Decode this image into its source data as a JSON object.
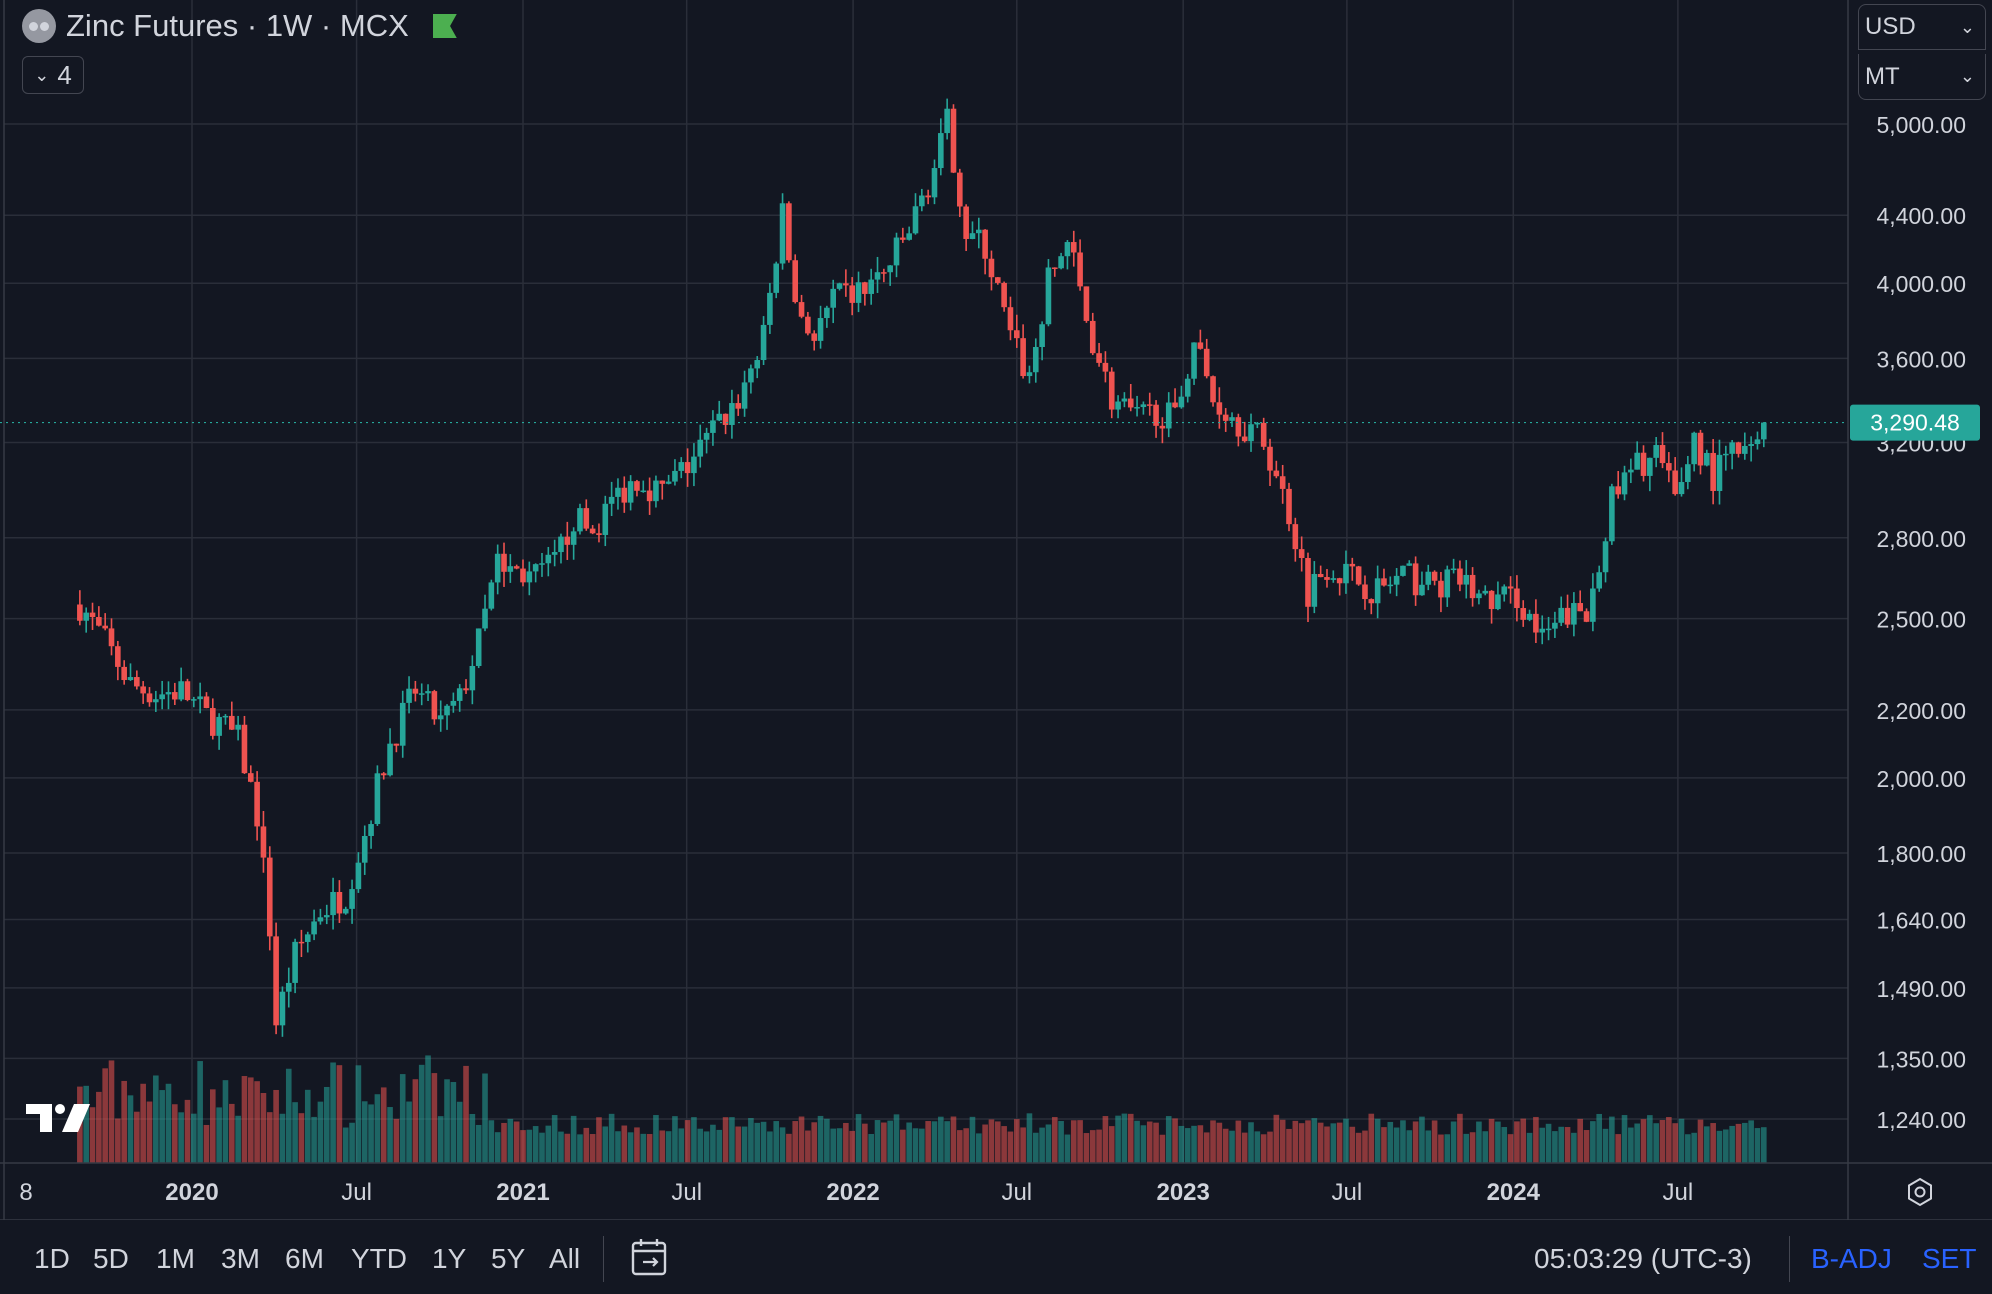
{
  "header": {
    "title": "Zinc Futures · 1W · MCX",
    "collapse_count": "4"
  },
  "currency_select": {
    "value": "USD"
  },
  "unit_select": {
    "value": "MT"
  },
  "price_tag": {
    "value": "3,290.48",
    "color": "#26a69a"
  },
  "ranges": [
    "1D",
    "5D",
    "1M",
    "3M",
    "6M",
    "YTD",
    "1Y",
    "5Y",
    "All"
  ],
  "footer": {
    "clock": "05:03:29 (UTC-3)",
    "badj": "B-ADJ",
    "set": "SET"
  },
  "colors": {
    "up": "#26a69a",
    "down": "#ef5350",
    "background": "#131722",
    "grid": "#2a2e39"
  },
  "chart_data": {
    "type": "candlestick",
    "interval": "1W",
    "scale": "log",
    "y_ticks": [
      1240,
      1350,
      1490,
      1640,
      1800,
      2000,
      2200,
      2500,
      2800,
      3200,
      3600,
      4000,
      4400,
      5000
    ],
    "x_ticks": [
      "8",
      "2020",
      "Jul",
      "2021",
      "Jul",
      "2022",
      "Jul",
      "2023",
      "Jul",
      "2024",
      "Jul"
    ],
    "last_price": 3290.48,
    "price_path": [
      [
        "2019-08-30",
        2550
      ],
      [
        "2019-09-27",
        2420
      ],
      [
        "2019-10-25",
        2280
      ],
      [
        "2019-11-22",
        2250
      ],
      [
        "2019-12-20",
        2260
      ],
      [
        "2020-01-17",
        2180
      ],
      [
        "2020-01-31",
        2160
      ],
      [
        "2020-02-21",
        2110
      ],
      [
        "2020-03-13",
        1900
      ],
      [
        "2020-03-27",
        1620
      ],
      [
        "2020-04-03",
        1420
      ],
      [
        "2020-04-24",
        1560
      ],
      [
        "2020-05-22",
        1660
      ],
      [
        "2020-06-19",
        1700
      ],
      [
        "2020-07-10",
        1850
      ],
      [
        "2020-08-07",
        2100
      ],
      [
        "2020-09-04",
        2260
      ],
      [
        "2020-10-02",
        2160
      ],
      [
        "2020-10-23",
        2230
      ],
      [
        "2020-11-13",
        2420
      ],
      [
        "2020-12-04",
        2700
      ],
      [
        "2020-12-25",
        2670
      ],
      [
        "2021-01-15",
        2650
      ],
      [
        "2021-02-05",
        2700
      ],
      [
        "2021-02-26",
        2880
      ],
      [
        "2021-03-19",
        2820
      ],
      [
        "2021-04-09",
        2950
      ],
      [
        "2021-05-07",
        3050
      ],
      [
        "2021-06-04",
        2980
      ],
      [
        "2021-07-02",
        3100
      ],
      [
        "2021-07-30",
        3250
      ],
      [
        "2021-08-27",
        3400
      ],
      [
        "2021-09-24",
        3700
      ],
      [
        "2021-10-15",
        4400
      ],
      [
        "2021-10-29",
        3900
      ],
      [
        "2021-11-19",
        3700
      ],
      [
        "2021-12-10",
        3900
      ],
      [
        "2022-01-07",
        3950
      ],
      [
        "2022-02-04",
        4050
      ],
      [
        "2022-03-04",
        4300
      ],
      [
        "2022-04-01",
        4700
      ],
      [
        "2022-04-15",
        5000
      ],
      [
        "2022-05-06",
        4300
      ],
      [
        "2022-05-27",
        4200
      ],
      [
        "2022-06-24",
        3700
      ],
      [
        "2022-07-15",
        3500
      ],
      [
        "2022-08-05",
        4000
      ],
      [
        "2022-08-26",
        4250
      ],
      [
        "2022-09-16",
        3800
      ],
      [
        "2022-10-14",
        3400
      ],
      [
        "2022-11-11",
        3300
      ],
      [
        "2022-12-02",
        3350
      ],
      [
        "2022-12-23",
        3300
      ],
      [
        "2023-01-13",
        3700
      ],
      [
        "2023-02-03",
        3400
      ],
      [
        "2023-03-03",
        3300
      ],
      [
        "2023-03-31",
        3200
      ],
      [
        "2023-04-28",
        2900
      ],
      [
        "2023-05-19",
        2600
      ],
      [
        "2023-06-09",
        2700
      ],
      [
        "2023-07-07",
        2650
      ],
      [
        "2023-08-04",
        2600
      ],
      [
        "2023-09-01",
        2650
      ],
      [
        "2023-10-06",
        2620
      ],
      [
        "2023-11-03",
        2640
      ],
      [
        "2023-12-01",
        2560
      ],
      [
        "2024-01-05",
        2580
      ],
      [
        "2024-02-02",
        2420
      ],
      [
        "2024-03-01",
        2520
      ],
      [
        "2024-03-22",
        2500
      ],
      [
        "2024-04-19",
        2950
      ],
      [
        "2024-05-17",
        3100
      ],
      [
        "2024-06-07",
        3150
      ],
      [
        "2024-06-28",
        2950
      ],
      [
        "2024-07-19",
        3220
      ],
      [
        "2024-08-09",
        3050
      ],
      [
        "2024-08-30",
        3150
      ],
      [
        "2024-09-20",
        3150
      ],
      [
        "2024-10-04",
        3290.48
      ]
    ]
  }
}
